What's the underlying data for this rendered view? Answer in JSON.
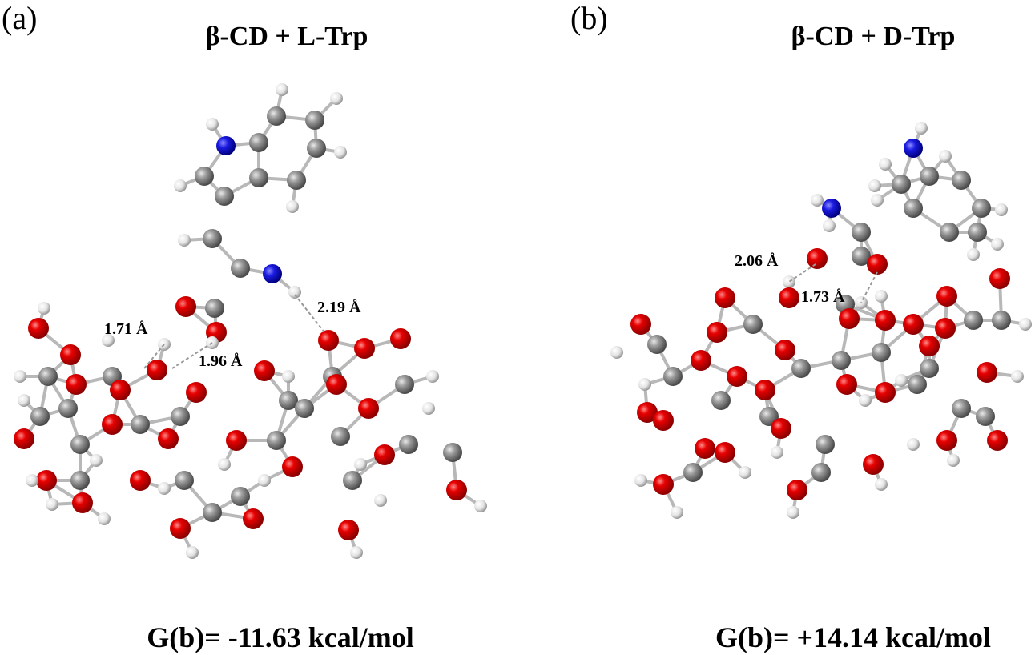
{
  "panels": [
    {
      "label": "(a)",
      "title": "β-CD + L-Trp",
      "distances": [
        "1.71 Å",
        "1.96 Å",
        "2.19 Å"
      ],
      "energy": "G(b)= -11.63 kcal/mol"
    },
    {
      "label": "(b)",
      "title": "β-CD + D-Trp",
      "distances": [
        "2.06 Å",
        "1.73 Å"
      ],
      "energy": "G(b)= +14.14 kcal/mol"
    }
  ]
}
